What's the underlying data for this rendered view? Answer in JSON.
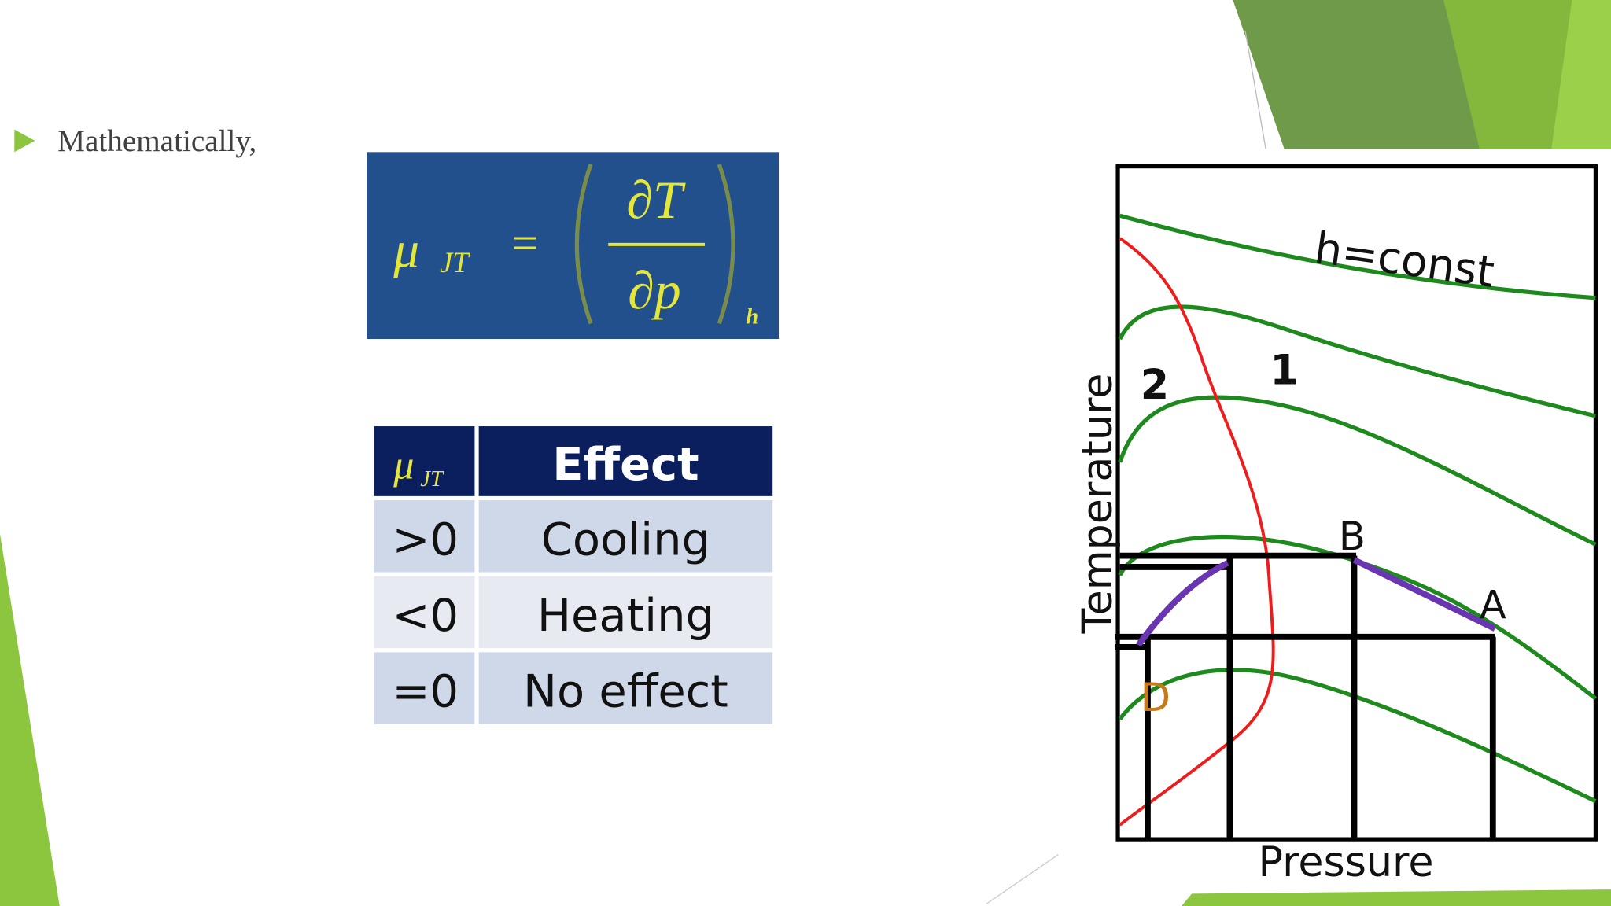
{
  "bullet": {
    "text": "Mathematically,"
  },
  "formula": {
    "symbol": "μ",
    "subscript": "JT",
    "equals": "=",
    "numerator": "∂T",
    "denominator": "∂p",
    "held_constant": "h"
  },
  "table": {
    "header": [
      {
        "symbol": "μ",
        "subscript": "JT"
      },
      "Effect"
    ],
    "rows": [
      [
        ">0",
        "Cooling"
      ],
      [
        "<0",
        "Heating"
      ],
      [
        "=0",
        "No effect"
      ]
    ]
  },
  "diagram": {
    "x_label": "Pressure",
    "y_label": "Temperature",
    "curve_label": "h=const",
    "region_labels": [
      "1",
      "2"
    ],
    "points": [
      "A",
      "B",
      "D"
    ]
  }
}
